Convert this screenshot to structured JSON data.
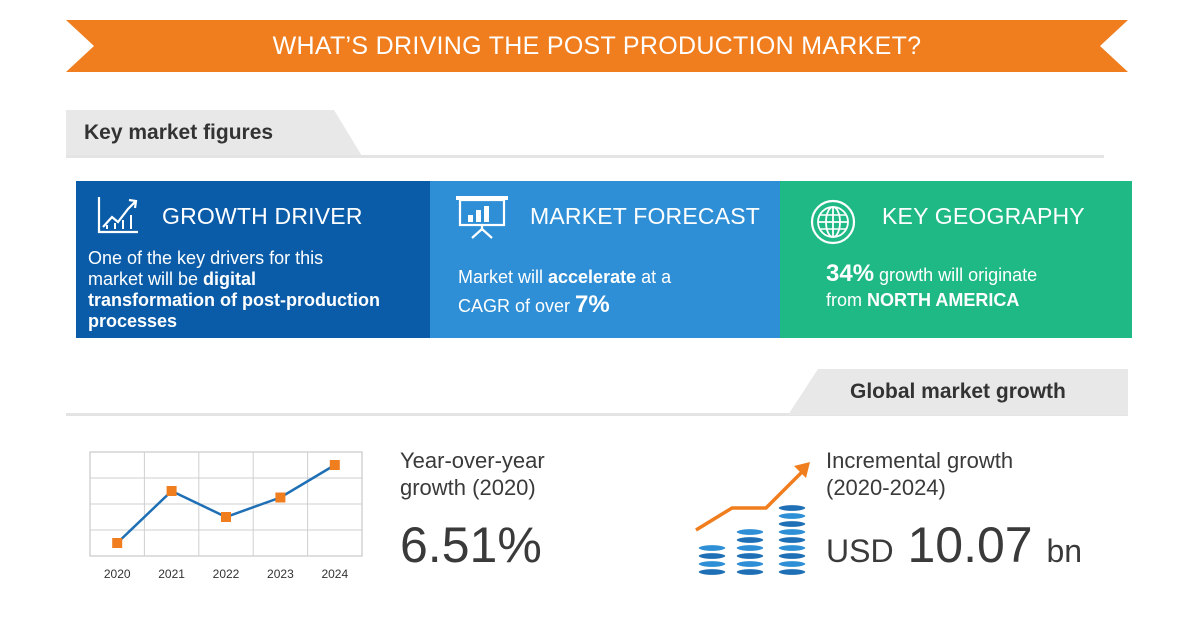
{
  "header": {
    "title": "WHAT’S DRIVING THE POST PRODUCTION MARKET?",
    "color": "#f07d1e"
  },
  "key_figures": {
    "title": "Key market figures",
    "growth_driver": {
      "heading": "GROWTH DRIVER",
      "icon": "growth-chart-icon",
      "color": "#0a5ca8",
      "line1": "One of the key drivers for this",
      "line2_pre": "market will be ",
      "line2_bold": "digital",
      "line3_bold": "transformation of post-production",
      "line4_bold": "processes"
    },
    "market_forecast": {
      "heading": "MARKET FORECAST",
      "icon": "presentation-board-icon",
      "color": "#2f8fd6",
      "line1_pre": "Market will ",
      "line1_bold": "accelerate",
      "line1_post": " at a",
      "line2_pre": "CAGR of over ",
      "line2_bold": "7%"
    },
    "key_geography": {
      "heading": "KEY GEOGRAPHY",
      "icon": "globe-icon",
      "color": "#1fb985",
      "line1_bold": "34%",
      "line1_post": " growth will originate",
      "line2_pre": "from ",
      "line2_bold": "NORTH AMERICA"
    }
  },
  "global_growth": {
    "title": "Global market growth",
    "yoy_label_line1": "Year-over-year",
    "yoy_label_line2": "growth (2020)",
    "yoy_value": "6.51%",
    "incremental_label_line1": "Incremental growth",
    "incremental_label_line2": "(2020-2024)",
    "incremental_currency": "USD",
    "incremental_value": "10.07",
    "incremental_unit": "bn",
    "icon": "coin-stacks-growth-icon"
  },
  "chart_data": {
    "type": "line",
    "x": [
      "2020",
      "2021",
      "2022",
      "2023",
      "2024"
    ],
    "series": [
      {
        "values": [
          1,
          5,
          3,
          4.5,
          7
        ]
      }
    ],
    "ylim": [
      0,
      8
    ],
    "grid": true,
    "line_color": "#1e6fb5",
    "marker_color": "#f07d1e"
  }
}
